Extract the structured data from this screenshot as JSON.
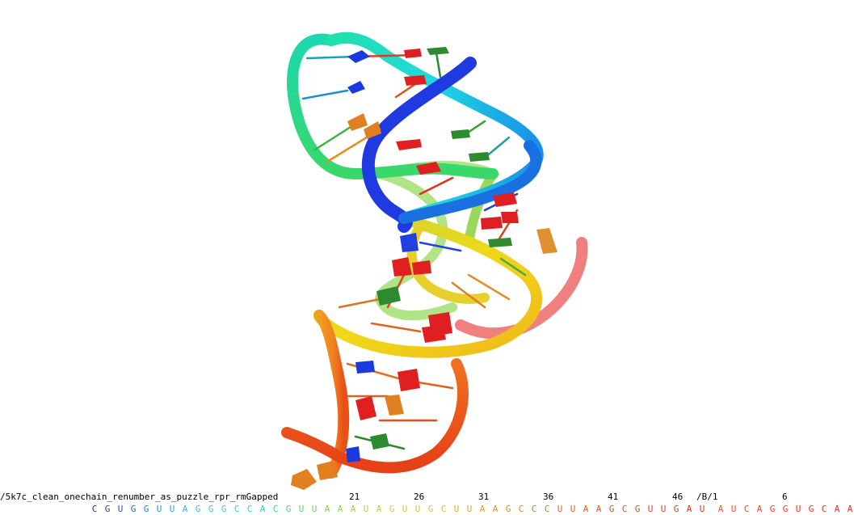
{
  "object_name": "/5k7c_clean_onechain_renumber_as_puzzle_rpr_rmGapped",
  "chain_b_name": "/B/1",
  "residue_numbers": [
    "21",
    "26",
    "31",
    "36",
    "41",
    "46"
  ],
  "chain_b_numbers": [
    "6"
  ],
  "chain_a_residues": [
    {
      "l": "C",
      "c": "#1a2bd6"
    },
    {
      "l": "G",
      "c": "#1a3fe0"
    },
    {
      "l": "U",
      "c": "#1a55e6"
    },
    {
      "l": "G",
      "c": "#1a6aea"
    },
    {
      "l": "G",
      "c": "#1a80ee"
    },
    {
      "l": "U",
      "c": "#1a95f0"
    },
    {
      "l": "U",
      "c": "#1aa8f0"
    },
    {
      "l": "A",
      "c": "#1abbee"
    },
    {
      "l": "G",
      "c": "#1accea"
    },
    {
      "l": "G",
      "c": "#1ad8e0"
    },
    {
      "l": "G",
      "c": "#1ae0d0"
    },
    {
      "l": "C",
      "c": "#1ae4bf"
    },
    {
      "l": "C",
      "c": "#1ae6ab"
    },
    {
      "l": "A",
      "c": "#1ae697"
    },
    {
      "l": "C",
      "c": "#22e585"
    },
    {
      "l": "G",
      "c": "#35e373"
    },
    {
      "l": "U",
      "c": "#4ae062"
    },
    {
      "l": "U",
      "c": "#5fdd55"
    },
    {
      "l": "A",
      "c": "#74da4a"
    },
    {
      "l": "A",
      "c": "#88d840"
    },
    {
      "l": "A",
      "c": "#9bd638"
    },
    {
      "l": "U",
      "c": "#add432"
    },
    {
      "l": "A",
      "c": "#bed22c"
    },
    {
      "l": "G",
      "c": "#cdd028"
    },
    {
      "l": "U",
      "c": "#dacd24"
    },
    {
      "l": "U",
      "c": "#e5c820"
    },
    {
      "l": "G",
      "c": "#ecc01e"
    },
    {
      "l": "C",
      "c": "#efb51c"
    },
    {
      "l": "U",
      "c": "#f0aa1a"
    },
    {
      "l": "U",
      "c": "#f0a01a"
    },
    {
      "l": "A",
      "c": "#f09618"
    },
    {
      "l": "A",
      "c": "#f08d18"
    },
    {
      "l": "G",
      "c": "#f08418"
    },
    {
      "l": "C",
      "c": "#ef7c18"
    },
    {
      "l": "C",
      "c": "#ee7418"
    },
    {
      "l": "C",
      "c": "#ed6d18"
    },
    {
      "l": "U",
      "c": "#ec6618"
    },
    {
      "l": "U",
      "c": "#eb6018"
    },
    {
      "l": "A",
      "c": "#ea5a18"
    },
    {
      "l": "A",
      "c": "#e95418"
    },
    {
      "l": "G",
      "c": "#e84f18"
    },
    {
      "l": "C",
      "c": "#e74a18"
    },
    {
      "l": "G",
      "c": "#e64518"
    },
    {
      "l": "U",
      "c": "#e54018"
    },
    {
      "l": "U",
      "c": "#e43b18"
    },
    {
      "l": "G",
      "c": "#e33718"
    },
    {
      "l": "A",
      "c": "#e23318"
    },
    {
      "l": "U",
      "c": "#e12f18"
    }
  ],
  "chain_b_residues": [
    {
      "l": "A",
      "c": "#e85a20"
    },
    {
      "l": "U",
      "c": "#e75520"
    },
    {
      "l": "C",
      "c": "#e65020"
    },
    {
      "l": "A",
      "c": "#e54b20"
    },
    {
      "l": "G",
      "c": "#e44620"
    },
    {
      "l": "G",
      "c": "#e34120"
    },
    {
      "l": "U",
      "c": "#e23c20"
    },
    {
      "l": "G",
      "c": "#e13820"
    },
    {
      "l": "C",
      "c": "#e03420"
    },
    {
      "l": "A",
      "c": "#df3020"
    },
    {
      "l": "A",
      "c": "#de2c20"
    }
  ],
  "colors": {
    "background": "#ffffff",
    "label": "#000000"
  }
}
